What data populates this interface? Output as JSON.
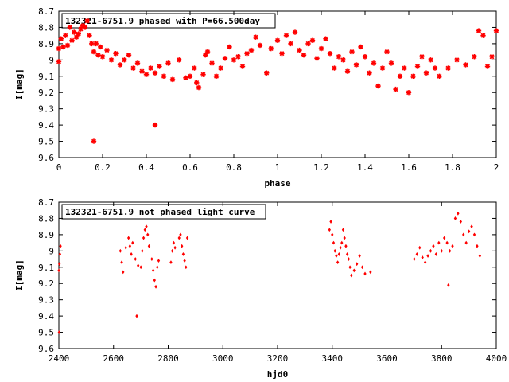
{
  "chart_data": [
    {
      "type": "scatter",
      "title": "132321-6751.9 phased with P=66.500day",
      "xlabel": "phase",
      "ylabel": "I[mag]",
      "xlim": [
        0,
        2
      ],
      "ylim": [
        8.7,
        9.6
      ],
      "y_inverted": true,
      "xticks": [
        "0",
        "0.2",
        "0.4",
        "0.6",
        "0.8",
        "1",
        "1.2",
        "1.4",
        "1.6",
        "1.8",
        "2"
      ],
      "yticks": [
        "8.7",
        "8.8",
        "8.9",
        "9",
        "9.1",
        "9.2",
        "9.3",
        "9.4",
        "9.5",
        "9.6"
      ],
      "marker": "star",
      "color": "#ff0000",
      "series": [
        {
          "points": [
            [
              0.0,
              8.93
            ],
            [
              0.0,
              9.01
            ],
            [
              0.01,
              8.87
            ],
            [
              0.02,
              8.92
            ],
            [
              0.03,
              8.85
            ],
            [
              0.04,
              8.91
            ],
            [
              0.05,
              8.8
            ],
            [
              0.06,
              8.88
            ],
            [
              0.07,
              8.83
            ],
            [
              0.08,
              8.86
            ],
            [
              0.09,
              8.84
            ],
            [
              0.1,
              8.81
            ],
            [
              0.11,
              8.79
            ],
            [
              0.12,
              8.8
            ],
            [
              0.13,
              8.76
            ],
            [
              0.14,
              8.85
            ],
            [
              0.15,
              8.9
            ],
            [
              0.16,
              8.95
            ],
            [
              0.17,
              8.9
            ],
            [
              0.18,
              8.97
            ],
            [
              0.19,
              8.92
            ],
            [
              0.2,
              8.98
            ],
            [
              0.22,
              8.94
            ],
            [
              0.24,
              9.0
            ],
            [
              0.26,
              8.96
            ],
            [
              0.28,
              9.03
            ],
            [
              0.3,
              9.0
            ],
            [
              0.32,
              8.97
            ],
            [
              0.34,
              9.05
            ],
            [
              0.36,
              9.02
            ],
            [
              0.38,
              9.07
            ],
            [
              0.4,
              9.09
            ],
            [
              0.42,
              9.05
            ],
            [
              0.44,
              9.08
            ],
            [
              0.46,
              9.04
            ],
            [
              0.48,
              9.1
            ],
            [
              0.5,
              9.02
            ],
            [
              0.52,
              9.12
            ],
            [
              0.55,
              9.0
            ],
            [
              0.58,
              9.11
            ],
            [
              0.6,
              9.1
            ],
            [
              0.62,
              9.05
            ],
            [
              0.63,
              9.14
            ],
            [
              0.64,
              9.17
            ],
            [
              0.66,
              9.09
            ],
            [
              0.67,
              8.97
            ],
            [
              0.68,
              8.95
            ],
            [
              0.7,
              9.02
            ],
            [
              0.72,
              9.1
            ],
            [
              0.74,
              9.05
            ],
            [
              0.76,
              8.99
            ],
            [
              0.78,
              8.92
            ],
            [
              0.8,
              9.0
            ],
            [
              0.82,
              8.98
            ],
            [
              0.84,
              9.04
            ],
            [
              0.86,
              8.96
            ],
            [
              0.88,
              8.94
            ],
            [
              0.9,
              8.86
            ],
            [
              0.92,
              8.91
            ],
            [
              0.95,
              9.08
            ],
            [
              0.97,
              8.93
            ],
            [
              1.0,
              8.88
            ],
            [
              1.02,
              8.96
            ],
            [
              1.04,
              8.85
            ],
            [
              1.06,
              8.9
            ],
            [
              1.08,
              8.83
            ],
            [
              1.1,
              8.94
            ],
            [
              1.12,
              8.97
            ],
            [
              1.14,
              8.9
            ],
            [
              1.16,
              8.88
            ],
            [
              1.18,
              8.99
            ],
            [
              1.2,
              8.93
            ],
            [
              1.22,
              8.87
            ],
            [
              1.24,
              8.96
            ],
            [
              1.26,
              9.05
            ],
            [
              1.28,
              8.98
            ],
            [
              1.3,
              9.0
            ],
            [
              1.32,
              9.07
            ],
            [
              1.34,
              8.95
            ],
            [
              1.36,
              9.03
            ],
            [
              1.38,
              8.92
            ],
            [
              1.4,
              8.98
            ],
            [
              1.42,
              9.08
            ],
            [
              1.44,
              9.02
            ],
            [
              1.46,
              9.16
            ],
            [
              1.48,
              9.05
            ],
            [
              1.5,
              8.95
            ],
            [
              1.52,
              9.02
            ],
            [
              1.54,
              9.18
            ],
            [
              1.56,
              9.1
            ],
            [
              1.58,
              9.05
            ],
            [
              1.6,
              9.2
            ],
            [
              1.62,
              9.1
            ],
            [
              1.64,
              9.04
            ],
            [
              1.66,
              8.98
            ],
            [
              1.68,
              9.08
            ],
            [
              1.7,
              9.0
            ],
            [
              1.72,
              9.05
            ],
            [
              1.74,
              9.1
            ],
            [
              1.78,
              9.05
            ],
            [
              1.82,
              9.0
            ],
            [
              1.86,
              9.03
            ],
            [
              1.9,
              8.98
            ],
            [
              1.92,
              8.82
            ],
            [
              1.94,
              8.85
            ],
            [
              1.96,
              9.04
            ],
            [
              1.98,
              8.98
            ],
            [
              2.0,
              8.82
            ],
            [
              0.16,
              9.5
            ],
            [
              0.44,
              9.4
            ]
          ]
        }
      ]
    },
    {
      "type": "scatter",
      "title": "132321-6751.9 not phased light curve",
      "xlabel": "hjd0",
      "ylabel": "I[mag]",
      "xlim": [
        2400,
        4000
      ],
      "ylim": [
        8.7,
        9.6
      ],
      "y_inverted": true,
      "xticks": [
        "2400",
        "2600",
        "2800",
        "3000",
        "3200",
        "3400",
        "3600",
        "3800",
        "4000"
      ],
      "yticks": [
        "8.7",
        "8.8",
        "8.9",
        "9",
        "9.1",
        "9.2",
        "9.3",
        "9.4",
        "9.5",
        "9.6"
      ],
      "marker": "diamond",
      "color": "#ff0000",
      "series": [
        {
          "points": [
            [
              2400,
              9.12
            ],
            [
              2402,
              9.08
            ],
            [
              2404,
              9.02
            ],
            [
              2406,
              8.97
            ],
            [
              2401,
              9.5
            ],
            [
              2625,
              9.0
            ],
            [
              2630,
              9.07
            ],
            [
              2635,
              9.13
            ],
            [
              2645,
              8.98
            ],
            [
              2655,
              8.92
            ],
            [
              2660,
              8.97
            ],
            [
              2665,
              9.02
            ],
            [
              2670,
              8.95
            ],
            [
              2680,
              9.05
            ],
            [
              2685,
              9.4
            ],
            [
              2690,
              9.09
            ],
            [
              2700,
              9.1
            ],
            [
              2705,
              9.0
            ],
            [
              2710,
              8.92
            ],
            [
              2715,
              8.87
            ],
            [
              2720,
              8.85
            ],
            [
              2725,
              8.9
            ],
            [
              2730,
              8.97
            ],
            [
              2740,
              9.05
            ],
            [
              2745,
              9.12
            ],
            [
              2750,
              9.18
            ],
            [
              2755,
              9.22
            ],
            [
              2760,
              9.1
            ],
            [
              2765,
              9.06
            ],
            [
              2810,
              9.07
            ],
            [
              2815,
              9.0
            ],
            [
              2820,
              8.95
            ],
            [
              2825,
              8.98
            ],
            [
              2840,
              8.92
            ],
            [
              2845,
              8.9
            ],
            [
              2850,
              8.97
            ],
            [
              2855,
              9.02
            ],
            [
              2860,
              9.06
            ],
            [
              2865,
              9.1
            ],
            [
              2870,
              8.92
            ],
            [
              3390,
              8.87
            ],
            [
              3395,
              8.82
            ],
            [
              3400,
              8.9
            ],
            [
              3405,
              8.95
            ],
            [
              3410,
              9.0
            ],
            [
              3415,
              9.03
            ],
            [
              3420,
              9.07
            ],
            [
              3425,
              9.02
            ],
            [
              3430,
              8.98
            ],
            [
              3435,
              8.95
            ],
            [
              3440,
              8.87
            ],
            [
              3445,
              8.92
            ],
            [
              3450,
              8.97
            ],
            [
              3455,
              9.02
            ],
            [
              3460,
              9.05
            ],
            [
              3465,
              9.1
            ],
            [
              3470,
              9.15
            ],
            [
              3480,
              9.12
            ],
            [
              3490,
              9.08
            ],
            [
              3500,
              9.03
            ],
            [
              3510,
              9.1
            ],
            [
              3520,
              9.14
            ],
            [
              3540,
              9.13
            ],
            [
              3700,
              9.05
            ],
            [
              3710,
              9.02
            ],
            [
              3720,
              8.98
            ],
            [
              3730,
              9.04
            ],
            [
              3740,
              9.07
            ],
            [
              3750,
              9.03
            ],
            [
              3760,
              9.0
            ],
            [
              3770,
              8.97
            ],
            [
              3780,
              9.02
            ],
            [
              3790,
              8.95
            ],
            [
              3800,
              9.0
            ],
            [
              3810,
              8.92
            ],
            [
              3820,
              8.95
            ],
            [
              3825,
              9.21
            ],
            [
              3830,
              9.0
            ],
            [
              3840,
              8.97
            ],
            [
              3850,
              8.8
            ],
            [
              3860,
              8.77
            ],
            [
              3870,
              8.82
            ],
            [
              3880,
              8.9
            ],
            [
              3890,
              8.95
            ],
            [
              3900,
              8.88
            ],
            [
              3910,
              8.85
            ],
            [
              3920,
              8.9
            ],
            [
              3930,
              8.97
            ],
            [
              3940,
              9.03
            ]
          ]
        }
      ]
    }
  ]
}
